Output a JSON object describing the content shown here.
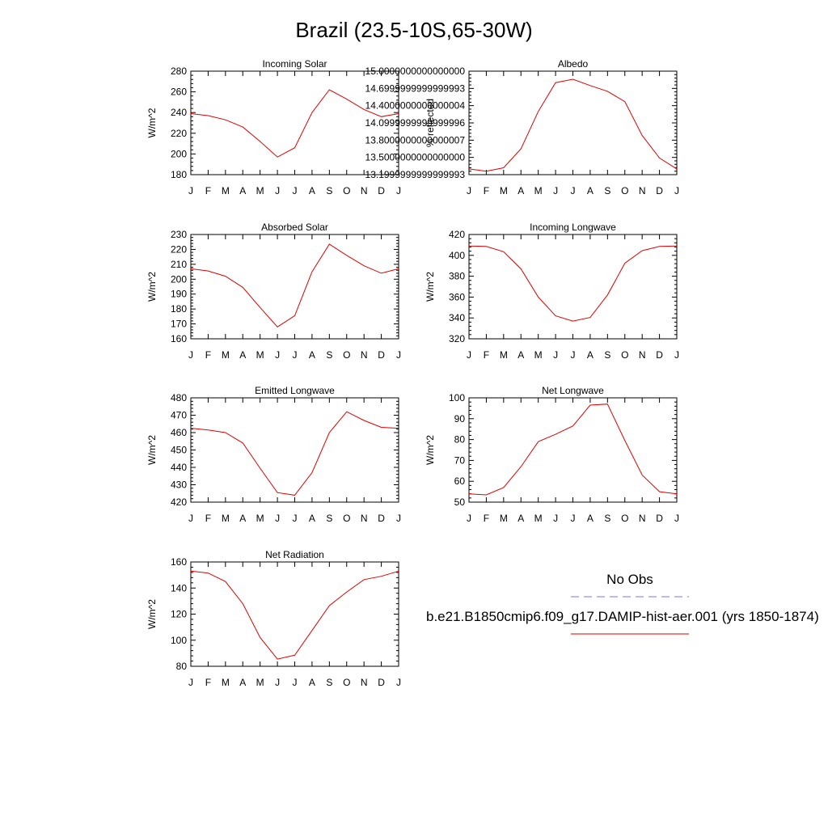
{
  "title": "Brazil (23.5-10S,65-30W)",
  "legend": {
    "obs_label": "No Obs",
    "obs_color": "#7777ee",
    "model_label": "b.e21.B1850cmip6.f09_g17.DAMIP-hist-aer.001 (yrs 1850-1874)",
    "model_color": "#e00000"
  },
  "chart_data": [
    {
      "type": "line",
      "title": "Incoming Solar",
      "ylabel": "W/m^2",
      "x": [
        "J",
        "F",
        "M",
        "A",
        "M",
        "J",
        "J",
        "A",
        "S",
        "O",
        "N",
        "D",
        "J"
      ],
      "ylim": [
        180,
        280
      ],
      "yticks": [
        180,
        200,
        220,
        240,
        260,
        280
      ],
      "series": [
        {
          "values": [
            239,
            237,
            233,
            226,
            212,
            197,
            206,
            240,
            262,
            253,
            243,
            236,
            239
          ]
        }
      ]
    },
    {
      "type": "line",
      "title": "Albedo",
      "ylabel": "% reflected",
      "x": [
        "J",
        "F",
        "M",
        "A",
        "M",
        "J",
        "J",
        "A",
        "S",
        "O",
        "N",
        "D",
        "J"
      ],
      "ylim": [
        13.2,
        15.0
      ],
      "yticks": [
        13.2,
        13.5,
        13.8,
        14.1,
        14.4,
        14.7,
        15.0
      ],
      "series": [
        {
          "values": [
            13.3,
            13.26,
            13.32,
            13.65,
            14.3,
            14.8,
            14.86,
            14.75,
            14.65,
            14.47,
            13.88,
            13.49,
            13.3
          ]
        }
      ]
    },
    {
      "type": "line",
      "title": "Absorbed Solar",
      "ylabel": "W/m^2",
      "x": [
        "J",
        "F",
        "M",
        "A",
        "M",
        "J",
        "J",
        "A",
        "S",
        "O",
        "N",
        "D",
        "J"
      ],
      "ylim": [
        160,
        230
      ],
      "yticks": [
        160,
        170,
        180,
        190,
        200,
        210,
        220,
        230
      ],
      "series": [
        {
          "values": [
            207,
            205.5,
            202,
            194.5,
            181,
            168,
            175.5,
            205,
            223.5,
            216,
            209,
            204,
            207
          ]
        }
      ]
    },
    {
      "type": "line",
      "title": "Incoming Longwave",
      "ylabel": "W/m^2",
      "x": [
        "J",
        "F",
        "M",
        "A",
        "M",
        "J",
        "J",
        "A",
        "S",
        "O",
        "N",
        "D",
        "J"
      ],
      "ylim": [
        320,
        420
      ],
      "yticks": [
        320,
        340,
        360,
        380,
        400,
        420
      ],
      "series": [
        {
          "values": [
            409,
            408.5,
            403.5,
            387,
            360,
            342,
            337,
            340.5,
            362,
            392.5,
            404.5,
            408.5,
            409
          ]
        }
      ]
    },
    {
      "type": "line",
      "title": "Emitted Longwave",
      "ylabel": "W/m^2",
      "x": [
        "J",
        "F",
        "M",
        "A",
        "M",
        "J",
        "J",
        "A",
        "S",
        "O",
        "N",
        "D",
        "J"
      ],
      "ylim": [
        420,
        480
      ],
      "yticks": [
        420,
        430,
        440,
        450,
        460,
        470,
        480
      ],
      "series": [
        {
          "values": [
            462.5,
            461.5,
            460,
            454,
            439.5,
            425.5,
            424,
            437,
            460,
            472,
            467,
            463,
            462.5
          ]
        }
      ]
    },
    {
      "type": "line",
      "title": "Net Longwave",
      "ylabel": "W/m^2",
      "x": [
        "J",
        "F",
        "M",
        "A",
        "M",
        "J",
        "J",
        "A",
        "S",
        "O",
        "N",
        "D",
        "J"
      ],
      "ylim": [
        50,
        100
      ],
      "yticks": [
        50,
        60,
        70,
        80,
        90,
        100
      ],
      "series": [
        {
          "values": [
            54,
            53.5,
            57,
            67,
            79,
            82.5,
            86.5,
            96.5,
            97,
            79.5,
            63,
            55,
            54
          ]
        }
      ]
    },
    {
      "type": "line",
      "title": "Net Radiation",
      "ylabel": "W/m^2",
      "x": [
        "J",
        "F",
        "M",
        "A",
        "M",
        "J",
        "J",
        "A",
        "S",
        "O",
        "N",
        "D",
        "J"
      ],
      "ylim": [
        80,
        160
      ],
      "yticks": [
        80,
        100,
        120,
        140,
        160
      ],
      "series": [
        {
          "values": [
            153,
            151.5,
            145,
            128,
            102,
            85.5,
            88.5,
            107.5,
            126.5,
            137,
            146.5,
            149,
            153
          ]
        }
      ]
    }
  ]
}
